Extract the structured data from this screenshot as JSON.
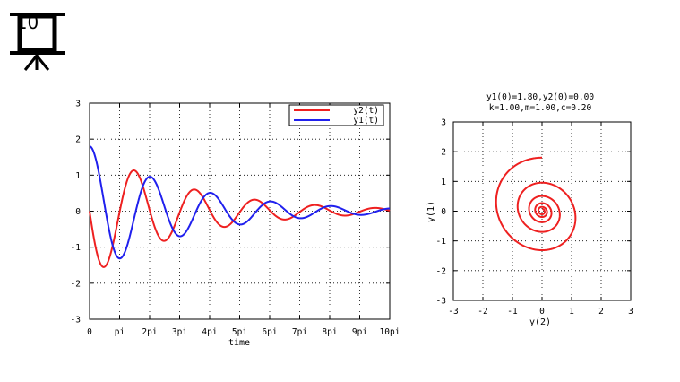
{
  "slide": {
    "number": "10"
  },
  "chart_data": [
    {
      "type": "line",
      "title": "",
      "xlabel": "time",
      "ylabel": "",
      "xlim": [
        0,
        31.4159
      ],
      "ylim": [
        -3,
        3
      ],
      "x_tick_labels": [
        "0",
        "pi",
        "2pi",
        "3pi",
        "4pi",
        "5pi",
        "6pi",
        "7pi",
        "8pi",
        "9pi",
        "10pi"
      ],
      "y_tick_labels": [
        "-3",
        "-2",
        "-1",
        "0",
        "1",
        "2",
        "3"
      ],
      "grid": true,
      "legend_position": "top-right",
      "series": [
        {
          "name": "y2(t)",
          "color": "#ee2020"
        },
        {
          "name": "y1(t)",
          "color": "#2020ee"
        }
      ],
      "model": {
        "k": 1.0,
        "m": 1.0,
        "c": 0.2,
        "y1_0": 1.8,
        "y2_0": 0.0,
        "t_end": 31.4159
      }
    },
    {
      "type": "line",
      "title_lines": [
        "y1(0)=1.80,y2(0)=0.00",
        "k=1.00,m=1.00,c=0.20"
      ],
      "xlabel": "y(2)",
      "ylabel": "y(1)",
      "xlim": [
        -3,
        3
      ],
      "ylim": [
        -3,
        3
      ],
      "x_tick_labels": [
        "-3",
        "-2",
        "-1",
        "0",
        "1",
        "2",
        "3"
      ],
      "y_tick_labels": [
        "-3",
        "-2",
        "-1",
        "0",
        "1",
        "2",
        "3"
      ],
      "grid": true,
      "series": [
        {
          "name": "",
          "color": "#ee2020"
        }
      ]
    }
  ]
}
